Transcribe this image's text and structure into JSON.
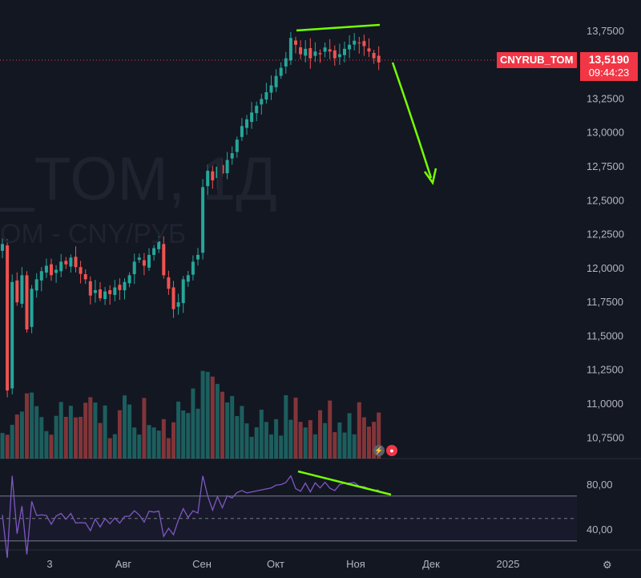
{
  "watermark": {
    "symbol": "_TOM, 1Д",
    "description": "OM - CNY/РУБ"
  },
  "symbol_tag": {
    "name": "CNYRUB_TOM",
    "price": "13,5190",
    "countdown": "09:44:23"
  },
  "colors": {
    "up": "#26a69a",
    "down": "#ef5350",
    "rsi": "#7e57c2",
    "annotation": "#76ff03",
    "background": "#131722"
  },
  "icons": [
    "lightning-icon",
    "alert-icon",
    "settings-icon"
  ],
  "chart_data": {
    "type": "candlestick",
    "price_axis": {
      "ticks": [
        "13,7500",
        "13,2500",
        "13,0000",
        "12,7500",
        "12,5000",
        "12,2500",
        "12,0000",
        "11,7500",
        "11,5000",
        "11,2500",
        "11,0000",
        "10,7500"
      ],
      "ylim": [
        10.58,
        13.98
      ]
    },
    "time_axis": {
      "labels": [
        "3",
        "Авг",
        "Сен",
        "Окт",
        "Ноя",
        "Дек",
        "2025"
      ]
    },
    "close_series": [
      12.18,
      11.1,
      11.9,
      11.75,
      11.95,
      11.55,
      11.85,
      11.92,
      11.98,
      12.02,
      11.95,
      11.99,
      12.05,
      12.03,
      12.08,
      12.01,
      11.96,
      11.92,
      11.8,
      11.84,
      11.78,
      11.83,
      11.81,
      11.86,
      11.84,
      11.9,
      11.95,
      12.05,
      12.08,
      12.02,
      12.1,
      12.15,
      12.2,
      11.95,
      11.85,
      11.7,
      11.75,
      11.92,
      11.95,
      12.05,
      12.1,
      12.6,
      12.72,
      12.65,
      12.75,
      12.7,
      12.8,
      12.85,
      12.95,
      13.05,
      13.1,
      13.15,
      13.2,
      13.25,
      13.3,
      13.35,
      13.42,
      13.48,
      13.55,
      13.7,
      13.65,
      13.58,
      13.62,
      13.55,
      13.6,
      13.58,
      13.63,
      13.6,
      13.55,
      13.58,
      13.62,
      13.65,
      13.68,
      13.66,
      13.64,
      13.6,
      13.55,
      13.52
    ],
    "rsi": {
      "ticks": [
        "80,00",
        "40,00"
      ],
      "upper_band": 70,
      "lower_band": 30,
      "ylim": [
        12,
        92
      ]
    }
  }
}
